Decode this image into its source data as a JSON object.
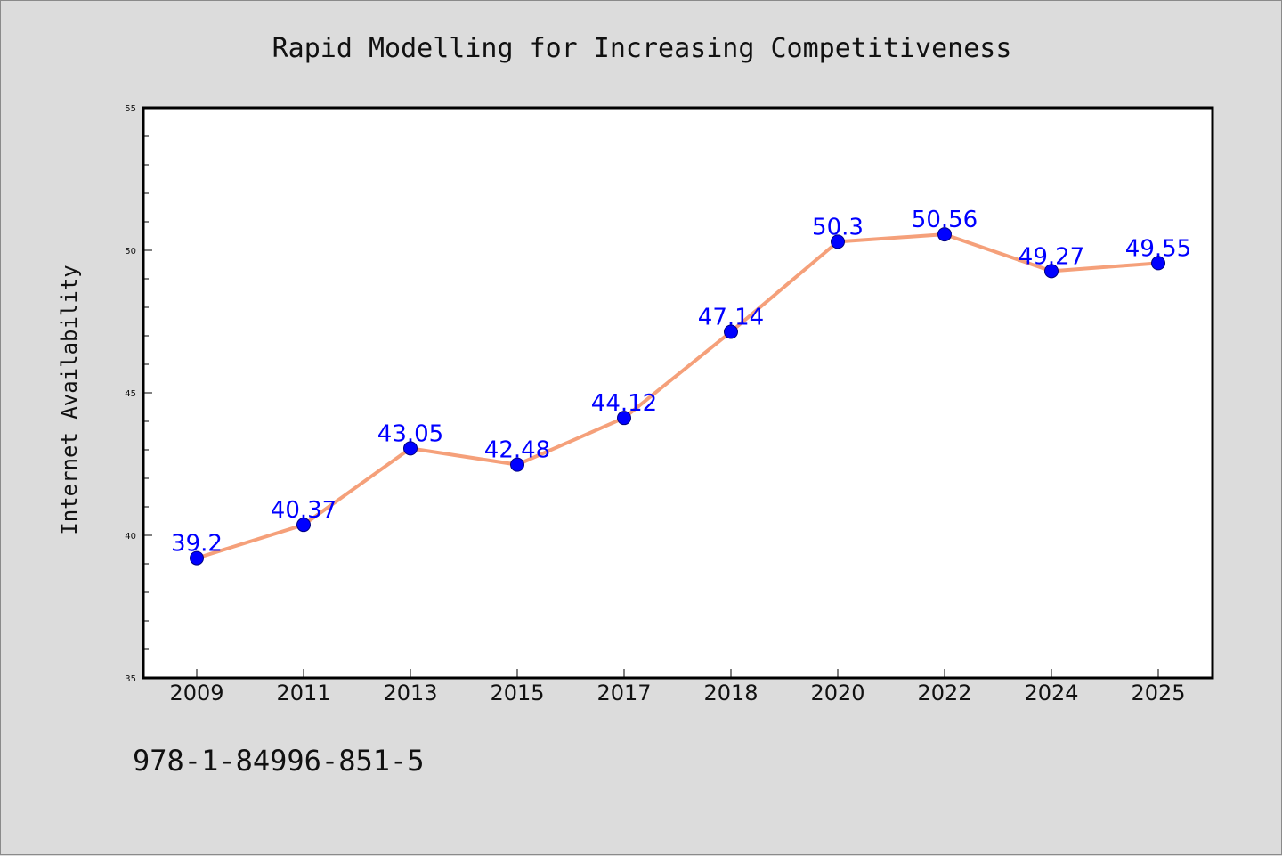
{
  "chart_data": {
    "type": "line",
    "title": "Rapid Modelling for Increasing Competitiveness",
    "ylabel": "Internet Availability",
    "xlabel": "",
    "categories": [
      "2009",
      "2011",
      "2013",
      "2015",
      "2017",
      "2018",
      "2020",
      "2022",
      "2024",
      "2025"
    ],
    "series": [
      {
        "values": [
          39.2,
          40.37,
          43.05,
          42.48,
          44.12,
          47.14,
          50.3,
          50.56,
          49.27,
          49.55
        ],
        "data_labels": [
          "39.2",
          "40.37",
          "43.05",
          "42.48",
          "44.12",
          "47.14",
          "50.3",
          "50.56",
          "49.27",
          "49.55"
        ]
      }
    ],
    "ylim": [
      35,
      55
    ],
    "yticks": [
      "35",
      "40",
      "45",
      "50",
      "55"
    ],
    "grid": false,
    "legend": "none",
    "colors": {
      "line": "#f5a07a",
      "marker": "#0000ff",
      "marker_edge": "#000080",
      "data_label": "#0000ff",
      "plot_background": "#ffffff",
      "figure_background": "#dcdcdc"
    }
  },
  "footnote": "978-1-84996-851-5"
}
